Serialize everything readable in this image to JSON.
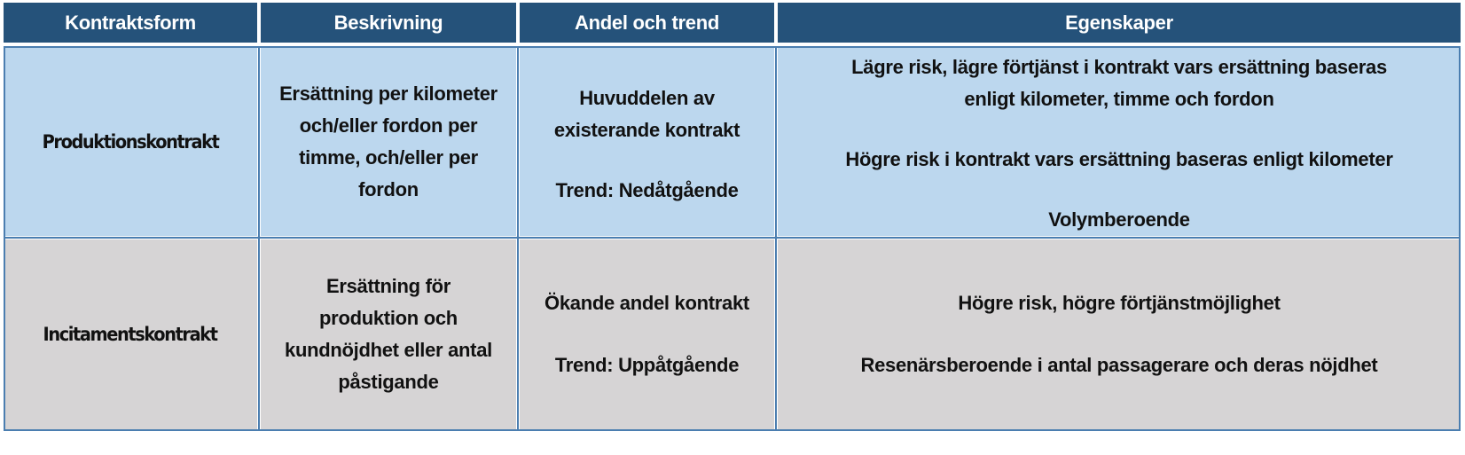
{
  "headers": [
    "Kontraktsform",
    "Beskrivning",
    "Andel och trend",
    "Egenskaper"
  ],
  "rows": [
    {
      "type": "Produktionskontrakt",
      "description": [
        "Ersättning per kilometer",
        "och/eller fordon per",
        "timme, och/eller per",
        "fordon"
      ],
      "share": "Huvuddelen av",
      "share2": "existerande kontrakt",
      "trend": "Trend:  Nedåtgående",
      "properties": {
        "p1a": "Lägre risk, lägre förtjänst i kontrakt vars ersättning baseras",
        "p1b": "enligt kilometer, timme och fordon",
        "p2": "Högre risk i kontrakt vars ersättning baseras enligt kilometer",
        "p3": "Volymberoende"
      }
    },
    {
      "type": "Incitamentskontrakt",
      "description": [
        "Ersättning för",
        "produktion och",
        "kundnöjdhet eller antal",
        "påstigande"
      ],
      "share": "Ökande andel kontrakt",
      "trend": "Trend: Uppåtgående",
      "properties": {
        "p1": "Högre risk, högre förtjänstmöjlighet",
        "p2": "Resenärsberoende i antal passagerare och deras nöjdhet"
      }
    }
  ],
  "colors": {
    "header_bg": "#25527a",
    "row1_bg": "#bcd7ee",
    "row2_bg": "#d6d4d5",
    "border": "#4b7eb0"
  }
}
